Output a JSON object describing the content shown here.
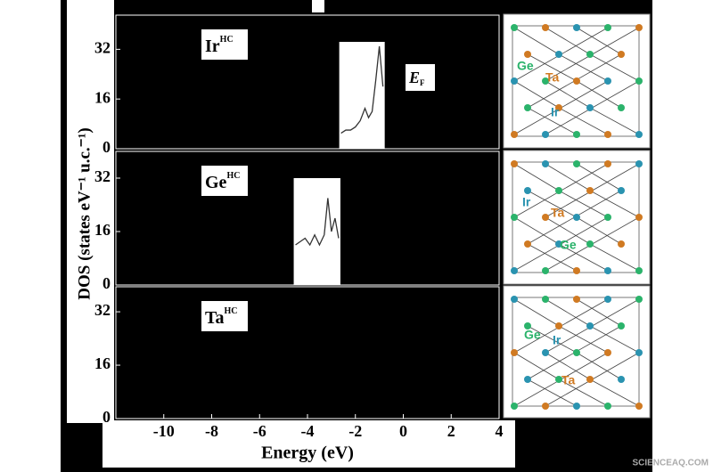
{
  "chart_data": [
    {
      "type": "line",
      "label": "Ir",
      "label_sup": "HC",
      "annotation": "E",
      "annotation_sub": "F",
      "xlim": [
        -12,
        4
      ],
      "ylim": [
        0,
        43
      ],
      "yticks": [
        0,
        16,
        32
      ],
      "series": [
        {
          "color": "#333333",
          "x": [
            -2.6,
            -2.4,
            -2.2,
            -2.0,
            -1.8,
            -1.6,
            -1.45,
            -1.3,
            -1.15,
            -1.0,
            -0.85
          ],
          "values": [
            5,
            6,
            6,
            7,
            9,
            13,
            10,
            12,
            22,
            33,
            20
          ]
        }
      ]
    },
    {
      "type": "line",
      "label": "Ge",
      "label_sup": "HC",
      "xlim": [
        -12,
        4
      ],
      "ylim": [
        0,
        40
      ],
      "yticks": [
        0,
        16,
        32
      ],
      "series": [
        {
          "color": "#333333",
          "x": [
            -4.5,
            -4.3,
            -4.1,
            -3.9,
            -3.7,
            -3.5,
            -3.3,
            -3.15,
            -3.0,
            -2.85,
            -2.7
          ],
          "values": [
            12,
            13,
            14,
            12,
            15,
            12,
            15,
            26,
            16,
            20,
            14
          ]
        }
      ]
    },
    {
      "type": "line",
      "label": "Ta",
      "label_sup": "HC",
      "xlim": [
        -12,
        4
      ],
      "ylim": [
        0,
        39.5
      ],
      "yticks": [
        0,
        16,
        32
      ],
      "xticks": [
        -10,
        -8,
        -6,
        -4,
        -2,
        0,
        2,
        4
      ],
      "xlabel": "Energy (eV)",
      "ylabel": "DOS (states eV⁻¹ u.c.⁻¹)",
      "series": []
    }
  ],
  "insets": [
    {
      "labels": [
        "Ge",
        "Ta",
        "Ir"
      ]
    },
    {
      "labels": [
        "Ir",
        "Ta",
        "Ge"
      ]
    },
    {
      "labels": [
        "Ge",
        "Ir",
        "Ta"
      ]
    }
  ],
  "watermark": "SCIENCEAQ.COM"
}
